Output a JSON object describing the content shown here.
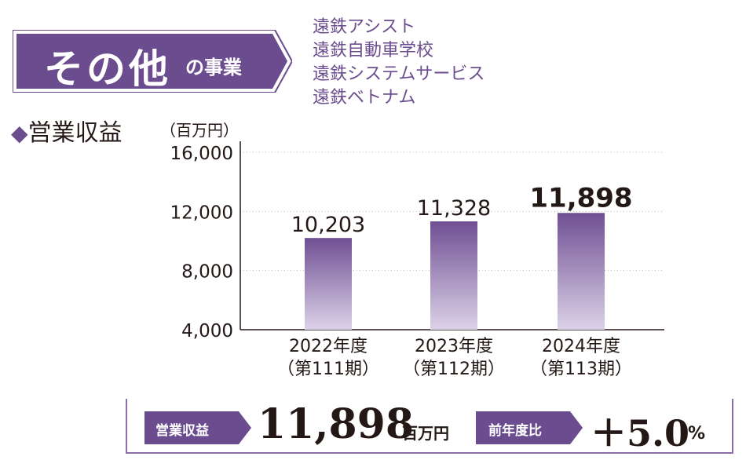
{
  "segment": {
    "title_main": "その他",
    "title_sub": "の事業",
    "companies": [
      "遠鉄アシスト",
      "遠鉄自動車学校",
      "遠鉄システムサービス",
      "遠鉄ベトナム"
    ]
  },
  "section": {
    "marker_icon": "diamond-icon",
    "title": "営業収益",
    "unit": "（百万円）"
  },
  "colors": {
    "accent": "#6b4d8f",
    "bar_top": "#6f4f93",
    "bar_bottom": "#dcd2e8",
    "grid": "#b8b8b8",
    "text": "#231815"
  },
  "chart_data": {
    "type": "bar",
    "ylabel": "（百万円）",
    "ylim": [
      4000,
      16000
    ],
    "yticks": [
      4000,
      8000,
      12000,
      16000
    ],
    "ytick_labels": [
      "4,000",
      "8,000",
      "12,000",
      "16,000"
    ],
    "grid": "horizontal dotted",
    "categories": [
      {
        "year": "2022年度",
        "period": "（第111期）"
      },
      {
        "year": "2023年度",
        "period": "（第112期）"
      },
      {
        "year": "2024年度",
        "period": "（第113期）"
      }
    ],
    "values": [
      10203,
      11328,
      11898
    ],
    "value_labels": [
      "10,203",
      "11,328",
      "11,898"
    ],
    "highlight_index": 2
  },
  "summary": {
    "revenue_tag": "営業収益",
    "revenue_value": "11,898",
    "revenue_unit": "百万円",
    "change_tag": "前年度比",
    "change_value": "＋5.0",
    "change_unit": "%"
  }
}
